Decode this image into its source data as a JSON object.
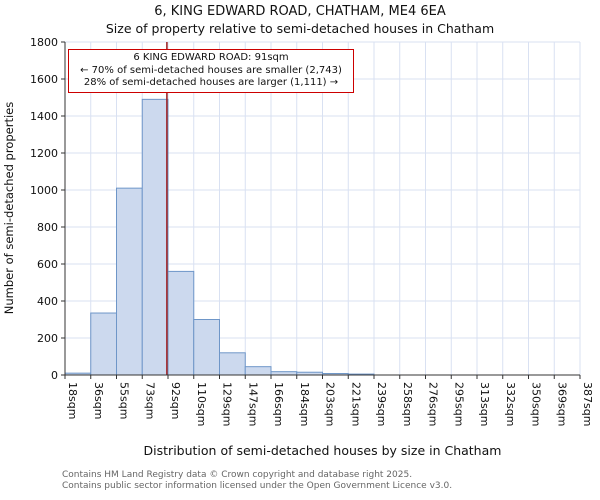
{
  "title": "6, KING EDWARD ROAD, CHATHAM, ME4 6EA",
  "subtitle": "Size of property relative to semi-detached houses in Chatham",
  "annotation": {
    "line1": "6 KING EDWARD ROAD: 91sqm",
    "line2": "← 70% of semi-detached houses are smaller (2,743)",
    "line3": "28% of semi-detached houses are larger (1,111) →"
  },
  "footer": {
    "line1": "Contains HM Land Registry data © Crown copyright and database right 2025.",
    "line2": "Contains public sector information licensed under the Open Government Licence v3.0."
  },
  "chart_data": {
    "type": "bar",
    "title": "Size of property relative to semi-detached houses in Chatham",
    "xlabel": "Distribution of semi-detached houses by size in Chatham",
    "ylabel": "Number of semi-detached properties",
    "x_tick_labels": [
      "18sqm",
      "36sqm",
      "55sqm",
      "73sqm",
      "92sqm",
      "110sqm",
      "129sqm",
      "147sqm",
      "166sqm",
      "184sqm",
      "203sqm",
      "221sqm",
      "239sqm",
      "258sqm",
      "276sqm",
      "295sqm",
      "313sqm",
      "332sqm",
      "350sqm",
      "369sqm",
      "387sqm"
    ],
    "bin_edges": [
      18,
      36,
      55,
      73,
      92,
      110,
      129,
      147,
      166,
      184,
      203,
      221,
      239,
      258,
      276,
      295,
      313,
      332,
      350,
      369,
      387
    ],
    "values": [
      10,
      335,
      1010,
      1490,
      560,
      300,
      120,
      45,
      18,
      15,
      8,
      5,
      0,
      0,
      0,
      0,
      0,
      0,
      0,
      0
    ],
    "ylim": [
      0,
      1800
    ],
    "y_ticks": [
      0,
      200,
      400,
      600,
      800,
      1000,
      1200,
      1400,
      1600,
      1800
    ],
    "marker_value": 91,
    "grid": true,
    "legend": "none",
    "colors": {
      "bar_fill": "#ccd9ee",
      "bar_stroke": "#6e96c8",
      "marker": "#a02020",
      "grid": "#d9e1f2",
      "axis": "#333333",
      "annotation_border": "#cc0000"
    }
  }
}
